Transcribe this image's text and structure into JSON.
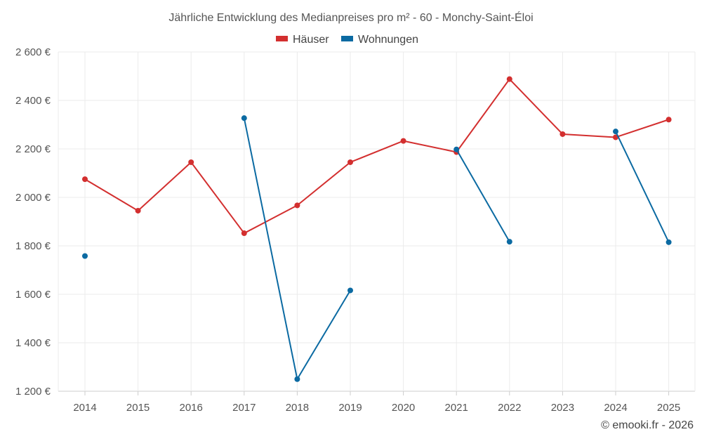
{
  "chart_data": {
    "type": "line",
    "title": "Jährliche Entwicklung des Medianpreises pro m² - 60 - Monchy-Saint-Éloi",
    "categories": [
      "2014",
      "2015",
      "2016",
      "2017",
      "2018",
      "2019",
      "2020",
      "2021",
      "2022",
      "2023",
      "2024",
      "2025"
    ],
    "ylim": [
      1200,
      2600
    ],
    "yticks": [
      1200,
      1400,
      1600,
      1800,
      2000,
      2200,
      2400,
      2600
    ],
    "ytick_labels": [
      "1 200 €",
      "1 400 €",
      "1 600 €",
      "1 800 €",
      "2 000 €",
      "2 200 €",
      "2 400 €",
      "2 600 €"
    ],
    "legend_position": "top-center",
    "grid": true,
    "series": [
      {
        "name": "Häuser",
        "color": "#d32f2f",
        "values": [
          2075,
          1945,
          2145,
          1852,
          1967,
          2145,
          2233,
          2187,
          2488,
          2261,
          2248,
          2321
        ]
      },
      {
        "name": "Wohnungen",
        "color": "#0b6aa2",
        "values": [
          1758,
          null,
          null,
          2327,
          1250,
          1616,
          null,
          2198,
          1817,
          null,
          2272,
          1815
        ]
      }
    ]
  },
  "footer": {
    "credit": "© emooki.fr - 2026"
  }
}
